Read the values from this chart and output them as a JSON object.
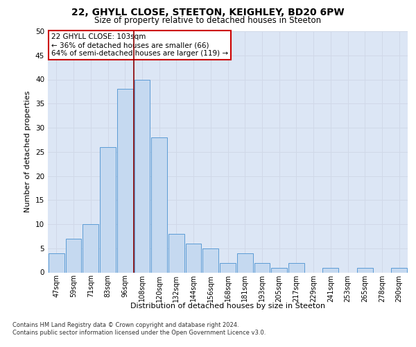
{
  "title_line1": "22, GHYLL CLOSE, STEETON, KEIGHLEY, BD20 6PW",
  "title_line2": "Size of property relative to detached houses in Steeton",
  "xlabel": "Distribution of detached houses by size in Steeton",
  "ylabel": "Number of detached properties",
  "categories": [
    "47sqm",
    "59sqm",
    "71sqm",
    "83sqm",
    "96sqm",
    "108sqm",
    "120sqm",
    "132sqm",
    "144sqm",
    "156sqm",
    "168sqm",
    "181sqm",
    "193sqm",
    "205sqm",
    "217sqm",
    "229sqm",
    "241sqm",
    "253sqm",
    "265sqm",
    "278sqm",
    "290sqm"
  ],
  "values": [
    4,
    7,
    10,
    26,
    38,
    40,
    28,
    8,
    6,
    5,
    2,
    4,
    2,
    1,
    2,
    0,
    1,
    0,
    1,
    0,
    1
  ],
  "bar_color": "#c5d9f0",
  "bar_edge_color": "#5b9bd5",
  "grid_color": "#d0d8e8",
  "background_color": "#dce6f5",
  "vline_color": "#8b0000",
  "annotation_text": "22 GHYLL CLOSE: 103sqm\n← 36% of detached houses are smaller (66)\n64% of semi-detached houses are larger (119) →",
  "annotation_box_color": "#ffffff",
  "annotation_box_edge": "#cc0000",
  "footer_line1": "Contains HM Land Registry data © Crown copyright and database right 2024.",
  "footer_line2": "Contains public sector information licensed under the Open Government Licence v3.0.",
  "ylim": [
    0,
    50
  ],
  "yticks": [
    0,
    5,
    10,
    15,
    20,
    25,
    30,
    35,
    40,
    45,
    50
  ]
}
